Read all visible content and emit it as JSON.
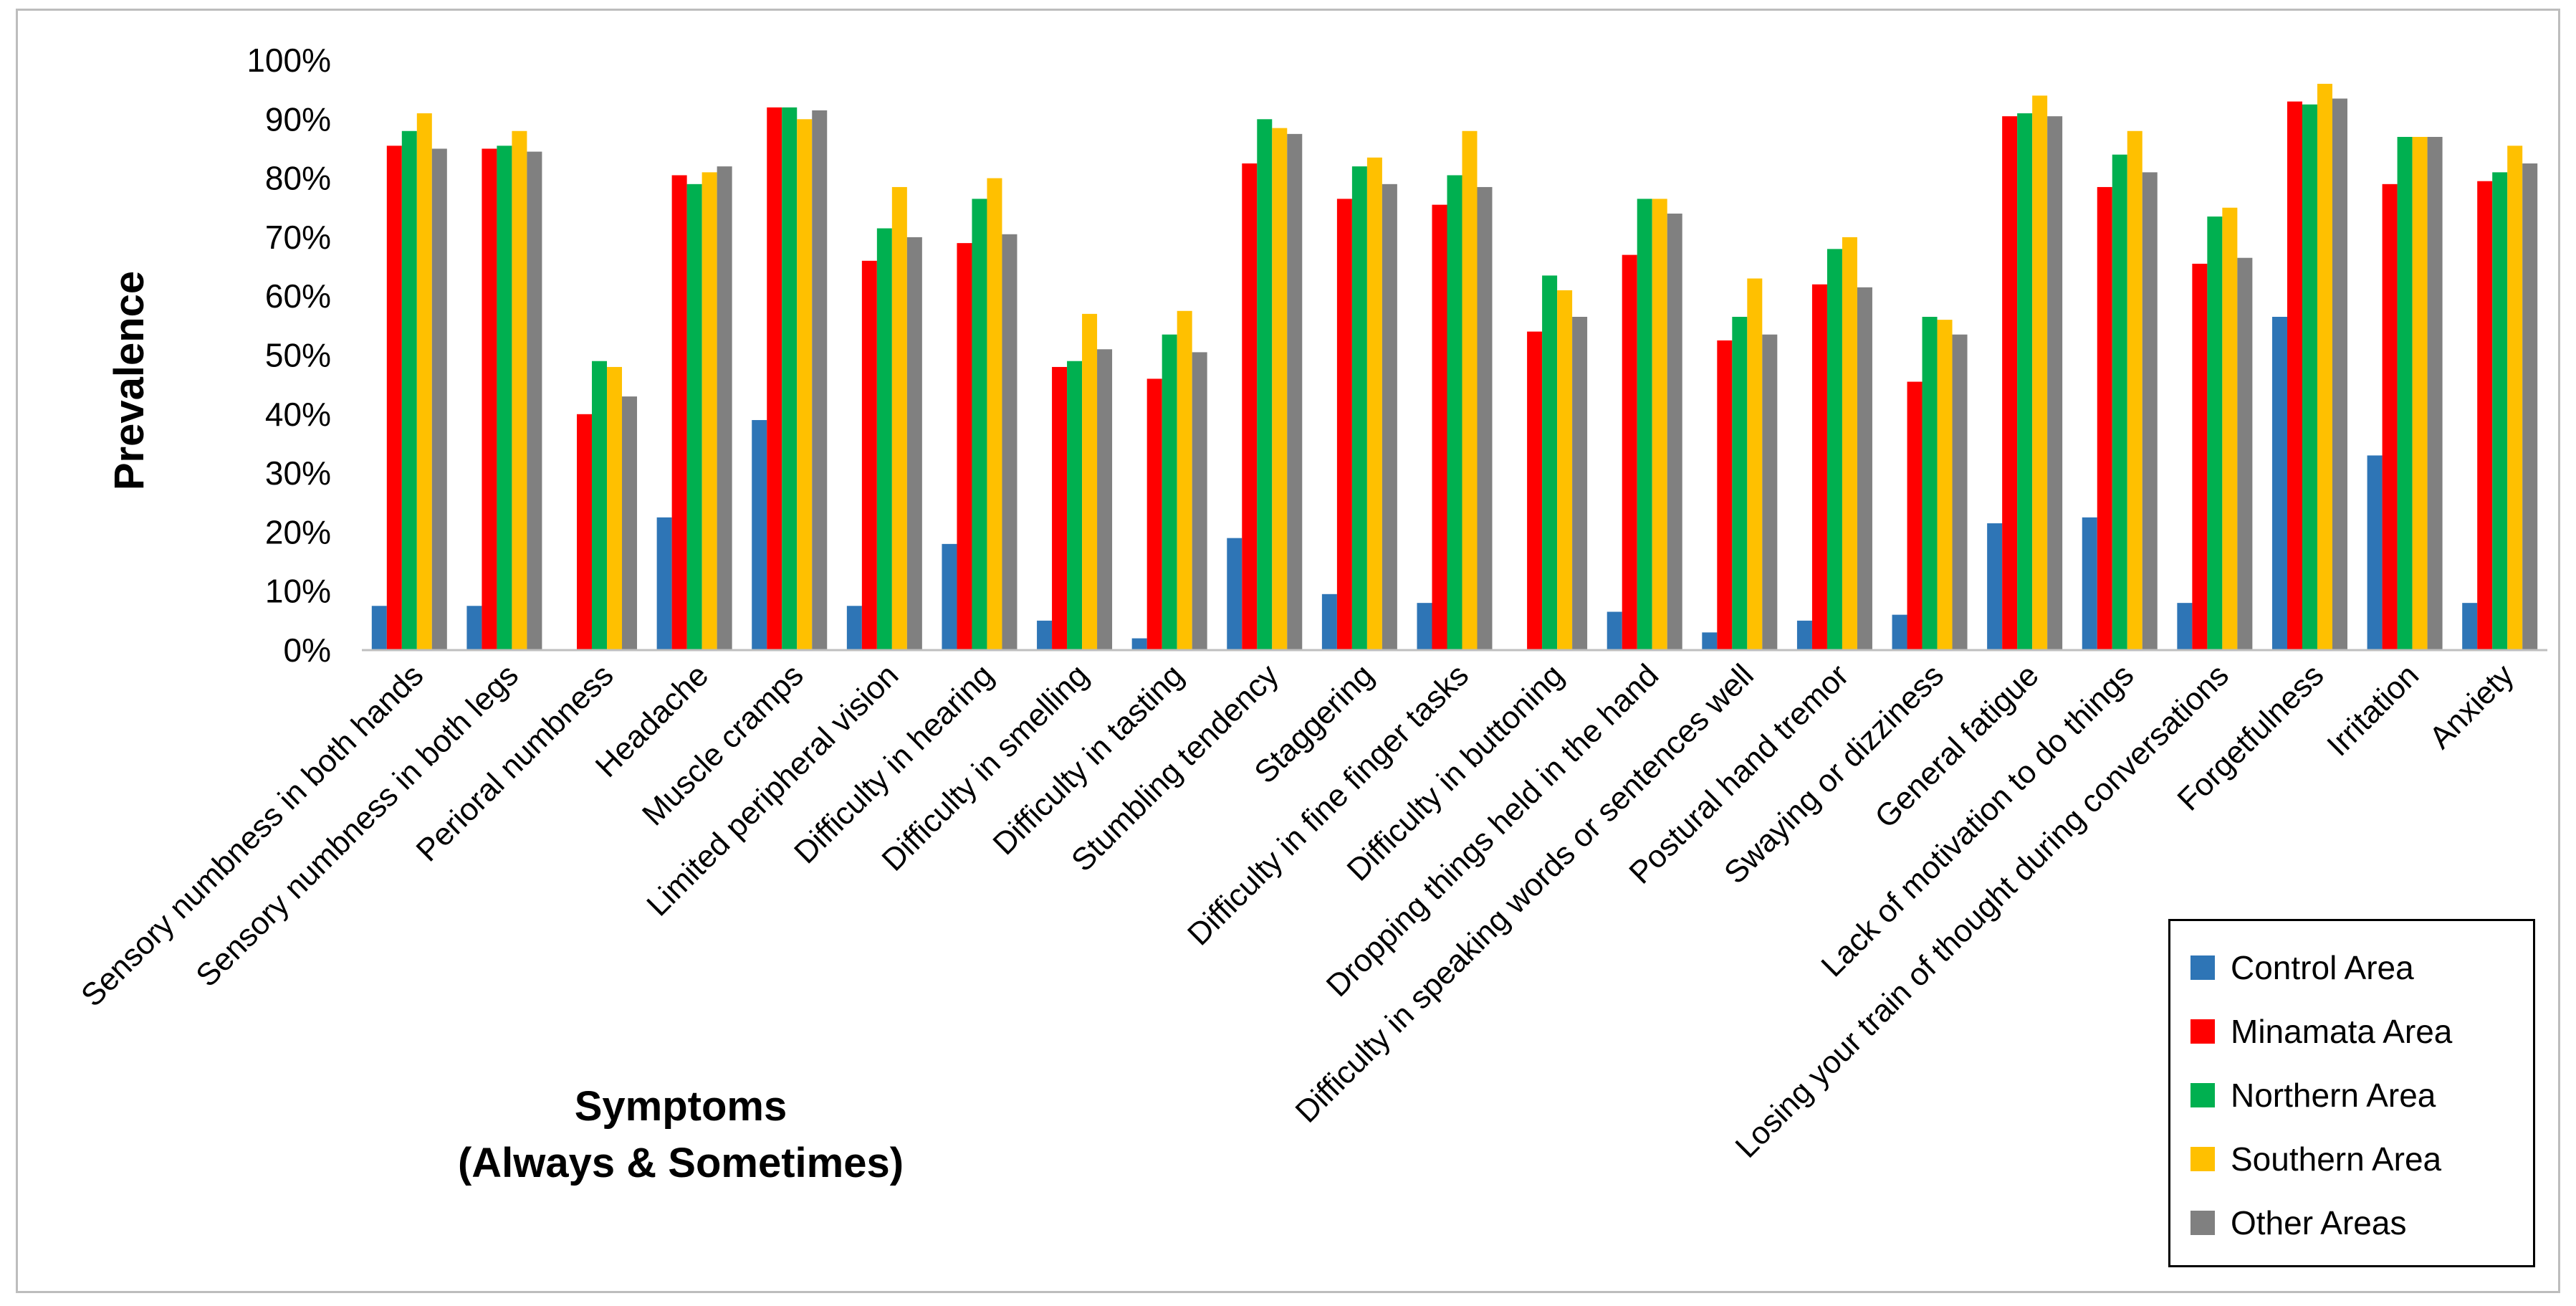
{
  "chart_data": {
    "type": "bar",
    "title": "",
    "ylabel": "Prevalence",
    "xlabel": [
      "Symptoms",
      "(Always & Sometimes)"
    ],
    "ylim": [
      0,
      100
    ],
    "ytick_values": [
      0,
      10,
      20,
      30,
      40,
      50,
      60,
      70,
      80,
      90,
      100
    ],
    "ytick_labels": [
      "0%",
      "10%",
      "20%",
      "30%",
      "40%",
      "50%",
      "60%",
      "70%",
      "80%",
      "90%",
      "100%"
    ],
    "grid": false,
    "legend_position": "bottom-right",
    "categories": [
      "Sensory numbness in both hands",
      "Sensory numbness in both legs",
      "Perioral numbness",
      "Headache",
      "Muscle cramps",
      "Limited peripheral vision",
      "Difficulty in hearing",
      "Difficulty in smelling",
      "Difficulty in tasting",
      "Stumbling tendency",
      "Staggering",
      "Difficulty in fine finger tasks",
      "Difficulty in buttoning",
      "Dropping things held in the hand",
      "Difficulty in speaking words or sentences well",
      "Postural hand tremor",
      "Swaying or dizziness",
      "General fatigue",
      "Lack of motivation to do things",
      "Losing your train of thought during conversations",
      "Forgetfulness",
      "Irritation",
      "Anxiety"
    ],
    "series": [
      {
        "name": "Control Area",
        "color": "#2e75b6",
        "values": [
          7.5,
          7.5,
          0,
          22.5,
          39,
          7.5,
          18,
          5,
          2,
          19,
          9.5,
          8,
          0,
          6.5,
          3,
          5,
          6,
          21.5,
          22.5,
          8,
          56.5,
          33,
          8
        ]
      },
      {
        "name": "Minamata Area",
        "color": "#ff0000",
        "values": [
          85.5,
          85,
          40,
          80.5,
          92,
          66,
          69,
          48,
          46,
          82.5,
          76.5,
          75.5,
          54,
          67,
          52.5,
          62,
          45.5,
          90.5,
          78.5,
          65.5,
          93,
          79,
          79.5
        ]
      },
      {
        "name": "Northern Area",
        "color": "#00b050",
        "values": [
          88,
          85.5,
          49,
          79,
          92,
          71.5,
          76.5,
          49,
          53.5,
          90,
          82,
          80.5,
          63.5,
          76.5,
          56.5,
          68,
          56.5,
          91,
          84,
          73.5,
          92.5,
          87,
          81
        ]
      },
      {
        "name": "Southern Area",
        "color": "#ffc000",
        "values": [
          91,
          88,
          48,
          81,
          90,
          78.5,
          80,
          57,
          57.5,
          88.5,
          83.5,
          88,
          61,
          76.5,
          63,
          70,
          56,
          94,
          88,
          75,
          96,
          87,
          85.5
        ]
      },
      {
        "name": "Other Areas",
        "color": "#808080",
        "values": [
          85,
          84.5,
          43,
          82,
          91.5,
          70,
          70.5,
          51,
          50.5,
          87.5,
          79,
          78.5,
          56.5,
          74,
          53.5,
          61.5,
          53.5,
          90.5,
          81,
          66.5,
          93.5,
          87,
          82.5
        ]
      }
    ]
  }
}
